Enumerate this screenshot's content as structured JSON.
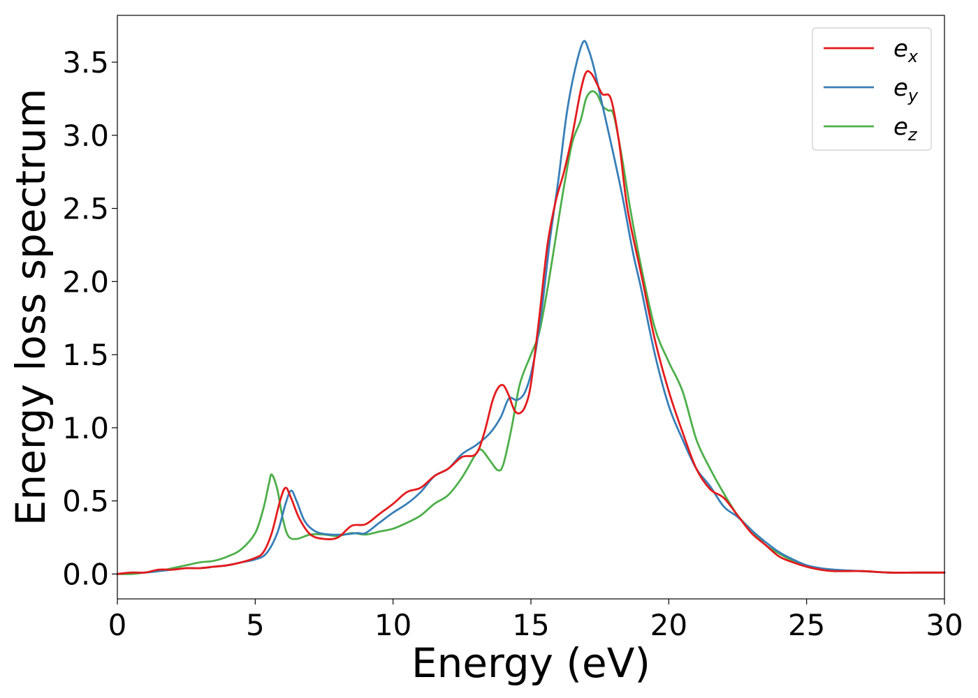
{
  "chart_data": {
    "type": "line",
    "title": "",
    "xlabel": "Energy (eV)",
    "ylabel": "Energy loss spectrum",
    "xlim": [
      0,
      30
    ],
    "ylim": [
      -0.17,
      3.82
    ],
    "xticks": [
      0,
      5,
      10,
      15,
      20,
      25,
      30
    ],
    "xtick_labels": [
      "0",
      "5",
      "10",
      "15",
      "20",
      "25",
      "30"
    ],
    "yticks": [
      0.0,
      0.5,
      1.0,
      1.5,
      2.0,
      2.5,
      3.0,
      3.5
    ],
    "ytick_labels": [
      "0.0",
      "0.5",
      "1.0",
      "1.5",
      "2.0",
      "2.5",
      "3.0",
      "3.5"
    ],
    "grid": false,
    "legend_position": "top-right",
    "series": [
      {
        "name": "e",
        "subscript": "x",
        "color": "#e41a1c",
        "x": [
          0,
          0.5,
          1,
          1.5,
          2,
          2.5,
          3,
          3.5,
          4,
          4.5,
          5,
          5.3,
          5.6,
          5.9,
          6.1,
          6.3,
          6.6,
          7,
          7.5,
          8,
          8.5,
          9,
          9.5,
          10,
          10.5,
          11,
          11.5,
          12,
          12.5,
          13,
          13.3,
          13.6,
          13.8,
          14,
          14.2,
          14.4,
          14.6,
          14.8,
          15,
          15.3,
          15.6,
          15.9,
          16.2,
          16.5,
          16.8,
          17,
          17.2,
          17.4,
          17.6,
          17.9,
          18.2,
          18.5,
          19,
          19.5,
          20,
          20.5,
          21,
          21.5,
          22,
          22.5,
          23,
          23.5,
          24,
          24.5,
          25,
          25.5,
          26,
          27,
          28,
          29,
          30
        ],
        "y": [
          0.0,
          0.01,
          0.01,
          0.03,
          0.03,
          0.04,
          0.04,
          0.05,
          0.06,
          0.08,
          0.11,
          0.15,
          0.28,
          0.5,
          0.59,
          0.52,
          0.38,
          0.27,
          0.24,
          0.25,
          0.33,
          0.34,
          0.41,
          0.48,
          0.56,
          0.59,
          0.67,
          0.72,
          0.8,
          0.82,
          0.96,
          1.18,
          1.27,
          1.29,
          1.22,
          1.12,
          1.1,
          1.15,
          1.3,
          1.75,
          2.25,
          2.55,
          2.75,
          3.0,
          3.3,
          3.43,
          3.42,
          3.35,
          3.28,
          3.25,
          2.95,
          2.5,
          2.05,
          1.6,
          1.25,
          0.97,
          0.72,
          0.58,
          0.52,
          0.4,
          0.28,
          0.2,
          0.12,
          0.08,
          0.05,
          0.03,
          0.02,
          0.02,
          0.01,
          0.01,
          0.01
        ]
      },
      {
        "name": "e",
        "subscript": "y",
        "color": "#377eb8",
        "x": [
          0,
          0.5,
          1,
          1.5,
          2,
          2.5,
          3,
          3.5,
          4,
          4.5,
          5,
          5.4,
          5.8,
          6.1,
          6.3,
          6.5,
          6.8,
          7.2,
          7.7,
          8.2,
          8.7,
          9,
          9.5,
          10,
          10.5,
          11,
          11.5,
          12,
          12.5,
          13,
          13.5,
          13.9,
          14.2,
          14.5,
          14.8,
          15.1,
          15.4,
          15.7,
          16,
          16.3,
          16.6,
          16.9,
          17.1,
          17.3,
          17.6,
          17.9,
          18.3,
          18.7,
          19,
          19.5,
          20,
          20.5,
          21,
          21.5,
          22,
          22.5,
          23,
          23.5,
          24,
          24.5,
          25,
          25.5,
          26,
          27,
          28,
          29,
          30
        ],
        "y": [
          0.0,
          0.01,
          0.01,
          0.02,
          0.03,
          0.04,
          0.04,
          0.05,
          0.06,
          0.08,
          0.1,
          0.14,
          0.28,
          0.48,
          0.57,
          0.5,
          0.36,
          0.29,
          0.27,
          0.27,
          0.28,
          0.28,
          0.35,
          0.42,
          0.48,
          0.56,
          0.67,
          0.72,
          0.82,
          0.88,
          0.96,
          1.07,
          1.2,
          1.19,
          1.25,
          1.45,
          1.82,
          2.3,
          2.7,
          3.15,
          3.45,
          3.64,
          3.58,
          3.45,
          3.2,
          2.95,
          2.6,
          2.2,
          1.95,
          1.5,
          1.15,
          0.92,
          0.72,
          0.6,
          0.46,
          0.39,
          0.3,
          0.22,
          0.15,
          0.1,
          0.06,
          0.04,
          0.03,
          0.02,
          0.01,
          0.01,
          0.01
        ]
      },
      {
        "name": "e",
        "subscript": "z",
        "color": "#4daf4a",
        "x": [
          0,
          0.5,
          1,
          1.5,
          2,
          2.5,
          3,
          3.5,
          4,
          4.5,
          5,
          5.3,
          5.5,
          5.6,
          5.8,
          6,
          6.2,
          6.5,
          7,
          7.5,
          8,
          8.5,
          9,
          9.5,
          10,
          10.5,
          11,
          11.5,
          12,
          12.5,
          13,
          13.2,
          13.5,
          13.8,
          14,
          14.3,
          14.6,
          15,
          15.3,
          15.6,
          15.9,
          16.2,
          16.5,
          16.8,
          17,
          17.2,
          17.4,
          17.6,
          17.8,
          18,
          18.3,
          18.6,
          19,
          19.5,
          20,
          20.5,
          21,
          21.5,
          22,
          22.5,
          23,
          23.5,
          24,
          24.5,
          25,
          25.5,
          26,
          27,
          28,
          29,
          30
        ],
        "y": [
          0.0,
          0.0,
          0.01,
          0.02,
          0.04,
          0.06,
          0.08,
          0.09,
          0.12,
          0.17,
          0.28,
          0.45,
          0.62,
          0.68,
          0.58,
          0.38,
          0.26,
          0.24,
          0.27,
          0.27,
          0.26,
          0.28,
          0.27,
          0.29,
          0.31,
          0.35,
          0.4,
          0.48,
          0.54,
          0.66,
          0.82,
          0.85,
          0.78,
          0.71,
          0.75,
          1.0,
          1.3,
          1.5,
          1.65,
          1.95,
          2.3,
          2.65,
          2.95,
          3.1,
          3.25,
          3.3,
          3.28,
          3.2,
          3.17,
          3.14,
          2.85,
          2.5,
          2.1,
          1.68,
          1.45,
          1.25,
          0.92,
          0.72,
          0.55,
          0.4,
          0.3,
          0.2,
          0.14,
          0.09,
          0.05,
          0.03,
          0.02,
          0.02,
          0.01,
          0.01,
          0.01
        ]
      }
    ]
  }
}
